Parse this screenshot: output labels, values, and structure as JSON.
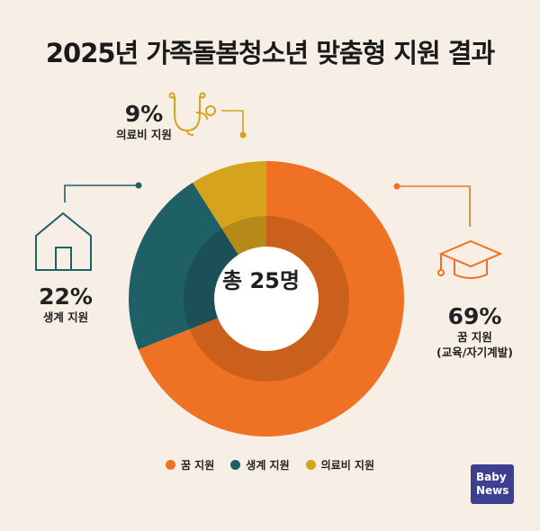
{
  "chart_data": {
    "type": "pie",
    "title": "2025년 가족돌봄청소년 맞춤형 지원 결과",
    "center_label": "총 25명",
    "slices": [
      {
        "name": "꿈 지원",
        "value": 69,
        "label": "69%",
        "sublabel": "꿈 지원",
        "sublabel2": "(교육/자기계발)",
        "color": "#ef7123",
        "icon": "graduation-cap-icon"
      },
      {
        "name": "생계 지원",
        "value": 22,
        "label": "22%",
        "sublabel": "생계 지원",
        "color": "#1f5f66",
        "icon": "house-icon"
      },
      {
        "name": "의료비 지원",
        "value": 9,
        "label": "9%",
        "sublabel": "의료비 지원",
        "color": "#d6a31d",
        "icon": "stethoscope-icon"
      }
    ],
    "legend": [
      "꿈 지원",
      "생계 지원",
      "의료비 지원"
    ],
    "legend_placement": "bottom"
  },
  "logo": {
    "line1": "Baby",
    "line2": "News"
  }
}
